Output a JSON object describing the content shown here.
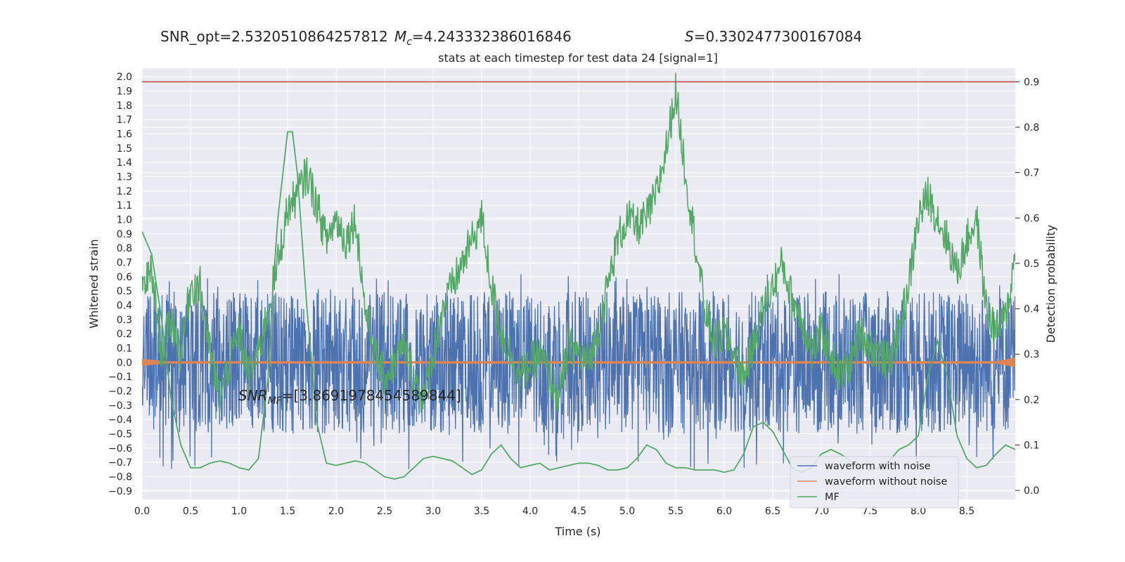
{
  "header": {
    "snr_opt": "SNR_opt=2.5320510864257812",
    "mc": "M",
    "mc_sub": "c",
    "mc_value": "=4.243332386016846",
    "s_sym": "S",
    "s_value": "=0.3302477300167084",
    "subtitle": "stats at each timestep for test data 24 [signal=1]"
  },
  "annotation": {
    "snr": "SNR",
    "snr_sub": "MF",
    "value": "=[3.8691978454589844]"
  },
  "chart_data": {
    "type": "line",
    "xlabel": "Time (s)",
    "ylabel_left": "Whitened strain",
    "ylabel_right": "Detection probability",
    "xlim": [
      0.0,
      9.0
    ],
    "ylim_left": [
      -0.96,
      2.06
    ],
    "ylim_right": [
      -0.02,
      0.93
    ],
    "x_ticks": [
      "0.0",
      "0.5",
      "1.0",
      "1.5",
      "2.0",
      "2.5",
      "3.0",
      "3.5",
      "4.0",
      "4.5",
      "5.0",
      "5.5",
      "6.0",
      "6.5",
      "7.0",
      "7.5",
      "8.0",
      "8.5"
    ],
    "y_left_ticks": [
      "2.0",
      "1.9",
      "1.8",
      "1.7",
      "1.6",
      "1.5",
      "1.4",
      "1.3",
      "1.2",
      "1.1",
      "1.0",
      "0.9",
      "0.8",
      "0.7",
      "0.6",
      "0.5",
      "0.4",
      "0.3",
      "0.2",
      "0.1",
      "0.0",
      "−0.1",
      "−0.2",
      "−0.3",
      "−0.4",
      "−0.5",
      "−0.6",
      "−0.7",
      "−0.8",
      "−0.9"
    ],
    "y_right_ticks": [
      "0.0",
      "0.1",
      "0.2",
      "0.3",
      "0.4",
      "0.5",
      "0.6",
      "0.7",
      "0.8",
      "0.9"
    ],
    "threshold": 0.9,
    "legend_position": "lower-right",
    "grid": true,
    "series": [
      {
        "name": "waveform with noise",
        "color": "#4c72b0",
        "axis": "left",
        "envelope": [
          -0.5,
          0.5
        ],
        "peak_range": [
          -0.75,
          0.62
        ]
      },
      {
        "name": "waveform without noise",
        "color": "#dd8452",
        "axis": "left",
        "value": 0.0
      },
      {
        "name": "MF",
        "color": "#55a868",
        "axis": "right",
        "x": [
          0.0,
          0.1,
          0.2,
          0.3,
          0.4,
          0.5,
          0.6,
          0.7,
          0.8,
          0.9,
          1.0,
          1.1,
          1.2,
          1.3,
          1.35,
          1.4,
          1.5,
          1.55,
          1.6,
          1.7,
          1.8,
          1.9,
          2.0,
          2.1,
          2.2,
          2.3,
          2.4,
          2.5,
          2.6,
          2.7,
          2.8,
          2.9,
          3.0,
          3.1,
          3.2,
          3.3,
          3.4,
          3.5,
          3.6,
          3.7,
          3.8,
          3.9,
          4.0,
          4.1,
          4.2,
          4.3,
          4.4,
          4.5,
          4.6,
          4.7,
          4.8,
          4.9,
          5.0,
          5.1,
          5.2,
          5.3,
          5.4,
          5.5,
          5.6,
          5.7,
          5.8,
          5.9,
          6.0,
          6.1,
          6.2,
          6.3,
          6.4,
          6.5,
          6.6,
          6.7,
          6.8,
          6.9,
          7.0,
          7.1,
          7.2,
          7.3,
          7.4,
          7.5,
          7.6,
          7.7,
          7.8,
          7.9,
          8.0,
          8.1,
          8.2,
          8.3,
          8.4,
          8.5,
          8.6,
          8.7,
          8.8,
          8.9,
          9.0
        ],
        "y": [
          0.57,
          0.52,
          0.38,
          0.2,
          0.1,
          0.05,
          0.05,
          0.06,
          0.065,
          0.06,
          0.05,
          0.045,
          0.07,
          0.25,
          0.45,
          0.6,
          0.79,
          0.79,
          0.7,
          0.4,
          0.15,
          0.06,
          0.055,
          0.06,
          0.065,
          0.06,
          0.045,
          0.03,
          0.025,
          0.03,
          0.05,
          0.07,
          0.075,
          0.07,
          0.065,
          0.05,
          0.035,
          0.045,
          0.08,
          0.1,
          0.07,
          0.05,
          0.055,
          0.06,
          0.045,
          0.05,
          0.055,
          0.06,
          0.06,
          0.055,
          0.045,
          0.045,
          0.05,
          0.07,
          0.1,
          0.09,
          0.06,
          0.05,
          0.05,
          0.045,
          0.045,
          0.045,
          0.04,
          0.045,
          0.08,
          0.14,
          0.15,
          0.13,
          0.09,
          0.05,
          0.04,
          0.05,
          0.08,
          0.09,
          0.08,
          0.065,
          0.05,
          0.045,
          0.05,
          0.065,
          0.09,
          0.1,
          0.12,
          0.25,
          0.33,
          0.25,
          0.12,
          0.07,
          0.05,
          0.055,
          0.08,
          0.1,
          0.09
        ]
      },
      {
        "name": "detection-probability",
        "color": "#55a868",
        "axis": "right",
        "x": [
          0.0,
          0.1,
          0.2,
          0.3,
          0.4,
          0.5,
          0.6,
          0.7,
          0.8,
          0.9,
          1.0,
          1.1,
          1.2,
          1.3,
          1.4,
          1.5,
          1.6,
          1.7,
          1.8,
          1.9,
          2.0,
          2.1,
          2.2,
          2.3,
          2.4,
          2.5,
          2.6,
          2.7,
          2.8,
          2.9,
          3.0,
          3.1,
          3.2,
          3.3,
          3.4,
          3.5,
          3.6,
          3.7,
          3.8,
          3.9,
          4.0,
          4.1,
          4.2,
          4.3,
          4.4,
          4.5,
          4.6,
          4.7,
          4.8,
          4.9,
          5.0,
          5.1,
          5.2,
          5.3,
          5.4,
          5.5,
          5.6,
          5.7,
          5.8,
          5.9,
          6.0,
          6.1,
          6.2,
          6.3,
          6.4,
          6.5,
          6.6,
          6.7,
          6.8,
          6.9,
          7.0,
          7.1,
          7.2,
          7.3,
          7.4,
          7.5,
          7.6,
          7.7,
          7.8,
          7.9,
          8.0,
          8.1,
          8.2,
          8.3,
          8.4,
          8.5,
          8.6,
          8.7,
          8.8,
          8.9,
          9.0
        ],
        "y": [
          0.45,
          0.48,
          0.3,
          0.38,
          0.3,
          0.45,
          0.45,
          0.3,
          0.2,
          0.28,
          0.35,
          0.25,
          0.3,
          0.4,
          0.5,
          0.62,
          0.65,
          0.7,
          0.63,
          0.55,
          0.6,
          0.55,
          0.6,
          0.4,
          0.3,
          0.25,
          0.28,
          0.32,
          0.25,
          0.2,
          0.3,
          0.4,
          0.45,
          0.5,
          0.55,
          0.6,
          0.45,
          0.35,
          0.3,
          0.25,
          0.28,
          0.3,
          0.25,
          0.2,
          0.32,
          0.3,
          0.28,
          0.35,
          0.45,
          0.55,
          0.6,
          0.58,
          0.6,
          0.65,
          0.75,
          0.88,
          0.7,
          0.55,
          0.4,
          0.32,
          0.35,
          0.3,
          0.25,
          0.32,
          0.4,
          0.45,
          0.5,
          0.42,
          0.38,
          0.3,
          0.35,
          0.3,
          0.25,
          0.28,
          0.35,
          0.32,
          0.3,
          0.28,
          0.35,
          0.45,
          0.6,
          0.65,
          0.6,
          0.55,
          0.48,
          0.55,
          0.6,
          0.4,
          0.35,
          0.38,
          0.52
        ]
      }
    ]
  }
}
